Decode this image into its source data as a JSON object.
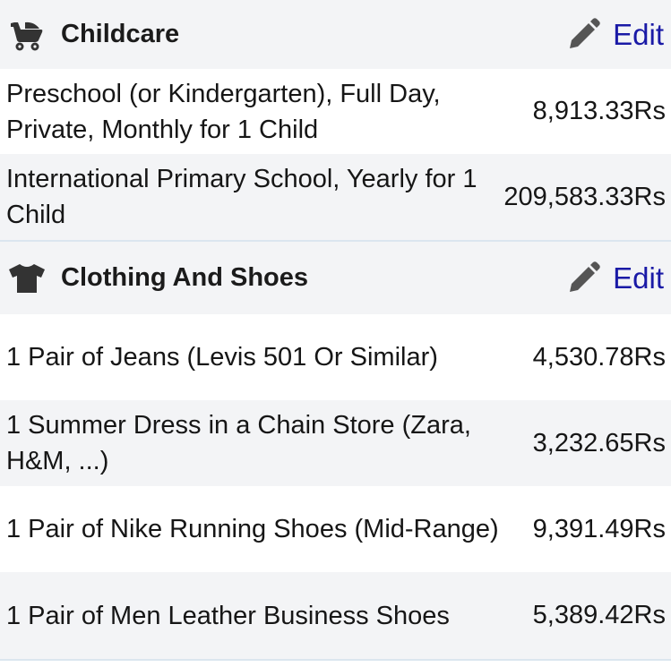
{
  "sections": [
    {
      "icon": "stroller-icon",
      "title": "Childcare",
      "edit_label": "Edit",
      "items": [
        {
          "label": "Preschool (or Kindergarten), Full Day, Private, Monthly for 1 Child",
          "price": "8,913.33Rs"
        },
        {
          "label": "International Primary School, Yearly for 1 Child",
          "price": "209,583.33Rs"
        }
      ]
    },
    {
      "icon": "tshirt-icon",
      "title": "Clothing And Shoes",
      "edit_label": "Edit",
      "items": [
        {
          "label": "1 Pair of Jeans (Levis 501 Or Similar)",
          "price": "4,530.78Rs"
        },
        {
          "label": "1 Summer Dress in a Chain Store (Zara, H&M, ...)",
          "price": "3,232.65Rs"
        },
        {
          "label": "1 Pair of Nike Running Shoes (Mid-Range)",
          "price": "9,391.49Rs"
        },
        {
          "label": "1 Pair of Men Leather Business Shoes",
          "price": "5,389.42Rs"
        }
      ]
    }
  ],
  "colors": {
    "header_bg": "#f3f4f6",
    "edit_link": "#1a1aa6",
    "icon": "#333333",
    "pencil": "#555555"
  }
}
